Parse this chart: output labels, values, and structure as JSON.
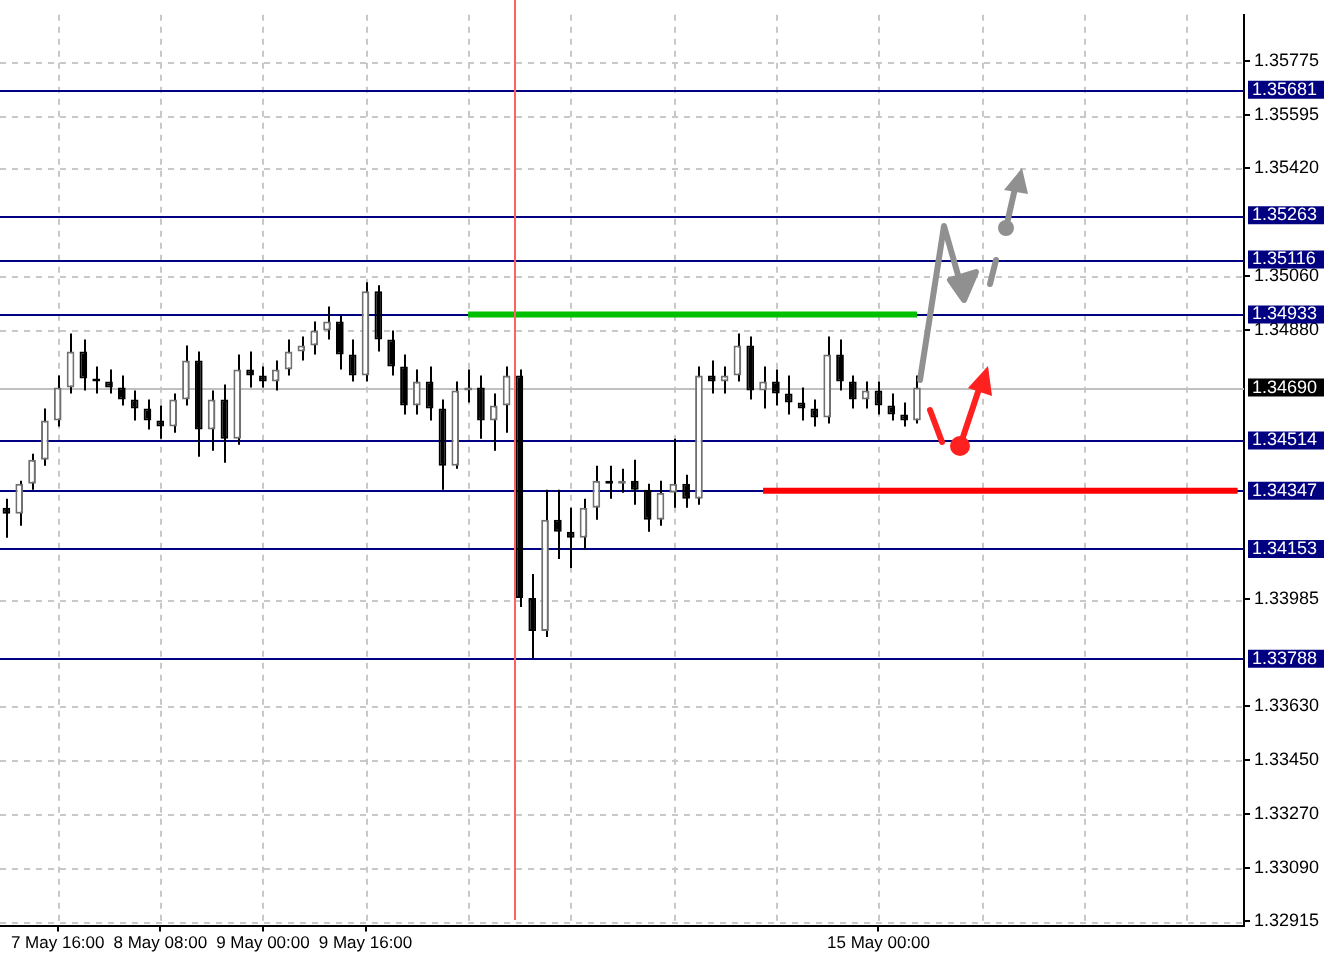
{
  "chart_data": {
    "type": "candlestick",
    "categories": [
      null,
      null,
      null,
      null,
      "7 May 16:00",
      null,
      null,
      null,
      null,
      null,
      null,
      null,
      "8 May 08:00",
      null,
      null,
      null,
      null,
      null,
      null,
      null,
      "9 May 00:00",
      null,
      null,
      null,
      null,
      null,
      null,
      null,
      "9 May 16:00",
      null,
      null,
      null,
      null,
      null,
      null,
      null,
      null,
      null,
      null,
      null,
      null,
      null,
      null,
      null,
      null,
      null,
      null,
      null,
      null,
      null,
      null,
      null,
      null,
      null,
      null,
      null,
      null,
      null,
      null,
      null,
      null,
      null,
      null,
      null,
      null,
      null,
      null,
      null,
      "15 May 00:00",
      null,
      null,
      null,
      null,
      null,
      null,
      null,
      null,
      null,
      null,
      null,
      null,
      null,
      null,
      null,
      null,
      null,
      null,
      null,
      null,
      null,
      null,
      null,
      null,
      null,
      null,
      null,
      null
    ],
    "ohlc": [
      [
        1.3429,
        1.3432,
        1.3419,
        1.3427
      ],
      [
        1.3427,
        1.3438,
        1.3423,
        1.3437
      ],
      [
        1.3437,
        1.3447,
        1.3435,
        1.3445
      ],
      [
        1.3445,
        1.3462,
        1.3443,
        1.3458
      ],
      [
        1.3458,
        1.3473,
        1.3456,
        1.3469
      ],
      [
        1.3469,
        1.3487,
        1.3467,
        1.3481
      ],
      [
        1.3481,
        1.3485,
        1.3468,
        1.3472
      ],
      [
        1.3472,
        1.3476,
        1.3467,
        1.3471
      ],
      [
        1.3471,
        1.3475,
        1.3467,
        1.3469
      ],
      [
        1.3469,
        1.3473,
        1.3463,
        1.3465
      ],
      [
        1.3465,
        1.3468,
        1.3458,
        1.3462
      ],
      [
        1.3462,
        1.3465,
        1.3455,
        1.3458
      ],
      [
        1.3458,
        1.3463,
        1.3452,
        1.3456
      ],
      [
        1.3456,
        1.3467,
        1.3454,
        1.3465
      ],
      [
        1.3465,
        1.3483,
        1.3463,
        1.3478
      ],
      [
        1.3478,
        1.3481,
        1.3446,
        1.3455
      ],
      [
        1.3455,
        1.3468,
        1.3448,
        1.3465
      ],
      [
        1.3465,
        1.347,
        1.3444,
        1.3452
      ],
      [
        1.3452,
        1.348,
        1.345,
        1.3475
      ],
      [
        1.3475,
        1.3481,
        1.3469,
        1.3473
      ],
      [
        1.3473,
        1.3476,
        1.3469,
        1.3471
      ],
      [
        1.3471,
        1.3478,
        1.3468,
        1.3475
      ],
      [
        1.3475,
        1.3485,
        1.3473,
        1.3481
      ],
      [
        1.3481,
        1.3486,
        1.3478,
        1.3483
      ],
      [
        1.3483,
        1.3491,
        1.348,
        1.3488
      ],
      [
        1.3488,
        1.3496,
        1.3485,
        1.3491
      ],
      [
        1.3491,
        1.3493,
        1.3475,
        1.348
      ],
      [
        1.348,
        1.3485,
        1.3471,
        1.3473
      ],
      [
        1.3473,
        1.3504,
        1.3471,
        1.3501
      ],
      [
        1.3501,
        1.3503,
        1.3481,
        1.3485
      ],
      [
        1.3485,
        1.3488,
        1.3473,
        1.3476
      ],
      [
        1.3476,
        1.348,
        1.346,
        1.3463
      ],
      [
        1.3463,
        1.3475,
        1.346,
        1.3471
      ],
      [
        1.3471,
        1.3476,
        1.3458,
        1.3462
      ],
      [
        1.3462,
        1.3465,
        1.3435,
        1.3443
      ],
      [
        1.3443,
        1.3471,
        1.3442,
        1.3468
      ],
      [
        1.3468,
        1.3475,
        1.3464,
        1.3469
      ],
      [
        1.3469,
        1.3473,
        1.3452,
        1.3458
      ],
      [
        1.3458,
        1.3467,
        1.3448,
        1.3463
      ],
      [
        1.3463,
        1.3476,
        1.3454,
        1.3473
      ],
      [
        1.3473,
        1.3475,
        1.3396,
        1.3399
      ],
      [
        1.3399,
        1.3407,
        1.3379,
        1.3388
      ],
      [
        1.3388,
        1.3435,
        1.3386,
        1.3425
      ],
      [
        1.3425,
        1.3435,
        1.3412,
        1.3421
      ],
      [
        1.3421,
        1.3429,
        1.3409,
        1.3419
      ],
      [
        1.3419,
        1.3432,
        1.3415,
        1.3429
      ],
      [
        1.3429,
        1.3443,
        1.3425,
        1.3438
      ],
      [
        1.3438,
        1.3443,
        1.3432,
        1.3437
      ],
      [
        1.3437,
        1.3442,
        1.3434,
        1.3438
      ],
      [
        1.3438,
        1.3445,
        1.343,
        1.3435
      ],
      [
        1.3435,
        1.3437,
        1.3421,
        1.3425
      ],
      [
        1.3425,
        1.3438,
        1.3423,
        1.3434
      ],
      [
        1.3434,
        1.3452,
        1.3429,
        1.3437
      ],
      [
        1.3437,
        1.344,
        1.3429,
        1.3432
      ],
      [
        1.3432,
        1.3476,
        1.343,
        1.3473
      ],
      [
        1.3473,
        1.3478,
        1.3467,
        1.3471
      ],
      [
        1.3471,
        1.3476,
        1.3467,
        1.3473
      ],
      [
        1.3473,
        1.3487,
        1.3471,
        1.3483
      ],
      [
        1.3483,
        1.3486,
        1.3465,
        1.3468
      ],
      [
        1.3468,
        1.3476,
        1.3462,
        1.3471
      ],
      [
        1.3471,
        1.3475,
        1.3463,
        1.3467
      ],
      [
        1.3467,
        1.3473,
        1.346,
        1.3464
      ],
      [
        1.3464,
        1.3469,
        1.3458,
        1.3462
      ],
      [
        1.3462,
        1.3465,
        1.3456,
        1.3459
      ],
      [
        1.3459,
        1.3486,
        1.3457,
        1.348
      ],
      [
        1.348,
        1.3485,
        1.3468,
        1.3471
      ],
      [
        1.3471,
        1.3473,
        1.3462,
        1.3465
      ],
      [
        1.3465,
        1.3471,
        1.3462,
        1.3468
      ],
      [
        1.3468,
        1.3471,
        1.346,
        1.3463
      ],
      [
        1.3463,
        1.3467,
        1.3458,
        1.346
      ],
      [
        1.346,
        1.3464,
        1.3456,
        1.3458
      ],
      [
        1.3458,
        1.3473,
        1.3457,
        1.3469
      ],
      null,
      null,
      null,
      null,
      null,
      null,
      null,
      null,
      null,
      null,
      null,
      null,
      null,
      null,
      null,
      null,
      null,
      null,
      null,
      null,
      null,
      null,
      null,
      null,
      null
    ],
    "series": [
      {
        "type": "line",
        "color": "#00c000",
        "values": [
          null,
          null,
          null,
          null,
          null,
          null,
          null,
          null,
          null,
          null,
          null,
          null,
          null,
          null,
          null,
          null,
          null,
          null,
          null,
          null,
          null,
          null,
          null,
          null,
          null,
          null,
          null,
          null,
          null,
          null,
          null,
          null,
          null,
          null,
          null,
          null,
          1.34933,
          1.34933,
          1.34933,
          1.34933,
          1.34933,
          1.34933,
          1.34933,
          1.34933,
          1.34933,
          1.34933,
          1.34933,
          1.34933,
          1.34933,
          1.34933,
          1.34933,
          1.34933,
          1.34933,
          1.34933,
          1.34933,
          1.34933,
          1.34933,
          1.34933,
          1.34933,
          1.34933,
          1.34933,
          1.34933,
          1.34933,
          1.34933,
          1.34933,
          1.34933,
          1.34933,
          1.34933,
          1.34933,
          1.34933,
          1.34933,
          1.34933,
          null,
          null,
          null,
          null,
          null,
          null,
          null,
          null,
          null,
          null,
          null,
          null,
          null,
          null,
          null,
          null,
          null,
          null,
          null,
          null,
          null,
          null,
          null,
          null,
          null
        ]
      },
      {
        "type": "line",
        "color": "#ff0000",
        "values": [
          null,
          null,
          null,
          null,
          null,
          null,
          null,
          null,
          null,
          null,
          null,
          null,
          null,
          null,
          null,
          null,
          null,
          null,
          null,
          null,
          null,
          null,
          null,
          null,
          null,
          null,
          null,
          null,
          null,
          null,
          null,
          null,
          null,
          null,
          null,
          null,
          null,
          null,
          null,
          null,
          null,
          null,
          null,
          null,
          null,
          null,
          null,
          null,
          null,
          null,
          null,
          null,
          null,
          null,
          null,
          null,
          null,
          null,
          null,
          1.34347,
          1.34347,
          1.34347,
          1.34347,
          1.34347,
          1.34347,
          1.34347,
          1.34347,
          1.34347,
          1.34347,
          1.34347,
          1.34347,
          1.34347,
          1.34347,
          1.34347,
          1.34347,
          1.34347,
          1.34347,
          1.34347,
          1.34347,
          1.34347,
          1.34347,
          1.34347,
          1.34347,
          1.34347,
          1.34347,
          1.34347,
          1.34347,
          1.34347,
          1.34347,
          1.34347,
          1.34347,
          1.34347,
          1.34347,
          1.34347,
          1.34347,
          1.34347,
          1.34347
        ]
      }
    ],
    "ylim": [
      1.329,
      1.3593
    ],
    "yticks": [
      1.35775,
      1.35595,
      {
        "value": 1.3542,
        "label": "1.35420"
      },
      {
        "value": 1.3506,
        "label": "1.35060"
      },
      {
        "value": 1.3488,
        "label": "1.34880"
      },
      1.33985,
      {
        "value": 1.3363,
        "label": "1.33630"
      },
      {
        "value": 1.3345,
        "label": "1.33450"
      },
      {
        "value": 1.3327,
        "label": "1.33270"
      },
      {
        "value": 1.3309,
        "label": "1.33090"
      },
      1.32915
    ],
    "ref_lines": [
      {
        "axis": "y",
        "value": 1.35681,
        "label": "1.35681",
        "color": "#000080"
      },
      {
        "axis": "y",
        "value": 1.35263,
        "label": "1.35263",
        "color": "#000080"
      },
      {
        "axis": "y",
        "value": 1.35116,
        "label": "1.35116",
        "color": "#000080"
      },
      {
        "axis": "y",
        "value": 1.34933,
        "label": "1.34933",
        "color": "#000080"
      },
      {
        "axis": "y",
        "value": 1.3469,
        "label": "1.34690",
        "color": "#c0c0c0"
      },
      {
        "axis": "y",
        "value": 1.34514,
        "label": "1.34514",
        "color": "#000080"
      },
      {
        "axis": "y",
        "value": 1.34347,
        "label": "1.34347",
        "color": "#000080"
      },
      {
        "axis": "y",
        "value": 1.34153,
        "label": "1.34153",
        "color": "#000080"
      },
      {
        "axis": "y",
        "value": 1.33788,
        "label": "1.33788",
        "color": "#000080"
      }
    ],
    "grid": true,
    "legend": false
  }
}
